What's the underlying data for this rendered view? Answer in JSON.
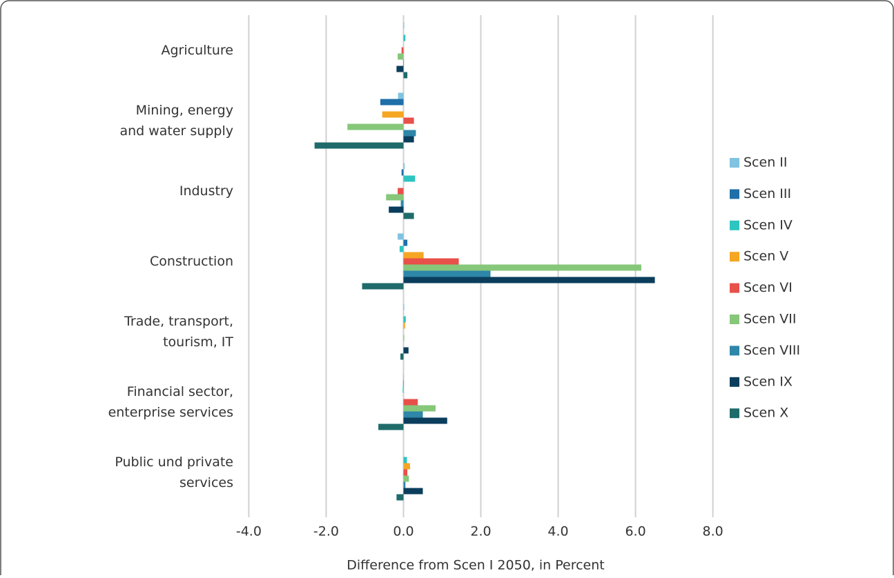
{
  "chart_data": {
    "type": "hbar",
    "x_label": "Difference from Scen I 2050, in Percent",
    "categories": [
      "Agriculture",
      "Mining, energy\nand water supply",
      "Industry",
      "Construction",
      "Trade, transport,\ntourism, IT",
      "Financial sector,\nenterprise services",
      "Public und private\nservices"
    ],
    "series": [
      {
        "name": "Scen II",
        "color": "#7fc3e0",
        "values": [
          0.02,
          -0.14,
          0.03,
          -0.15,
          0.02,
          -0.01,
          0
        ]
      },
      {
        "name": "Scen III",
        "color": "#1f6fa8",
        "values": [
          0,
          -0.6,
          -0.05,
          0.1,
          0,
          -0.01,
          0
        ]
      },
      {
        "name": "Scen IV",
        "color": "#2ec4c0",
        "values": [
          0.05,
          0,
          0.3,
          -0.1,
          0.06,
          -0.02,
          0.09
        ]
      },
      {
        "name": "Scen V",
        "color": "#f5a623",
        "values": [
          0,
          -0.55,
          0,
          0.52,
          0.04,
          0,
          0.17
        ]
      },
      {
        "name": "Scen VI",
        "color": "#e8504a",
        "values": [
          -0.05,
          0.27,
          -0.15,
          1.43,
          0,
          0.37,
          0.1
        ]
      },
      {
        "name": "Scen VII",
        "color": "#86c77a",
        "values": [
          -0.15,
          -1.45,
          -0.45,
          6.15,
          0.02,
          0.83,
          0.14
        ]
      },
      {
        "name": "Scen VIII",
        "color": "#2e86a8",
        "values": [
          0.01,
          0.32,
          -0.07,
          2.25,
          0,
          0.5,
          0.05
        ]
      },
      {
        "name": "Scen IX",
        "color": "#0b3d5c",
        "values": [
          -0.18,
          0.27,
          -0.38,
          6.5,
          0.13,
          1.13,
          0.5
        ]
      },
      {
        "name": "Scen X",
        "color": "#1f6b6b",
        "values": [
          0.1,
          -2.3,
          0.27,
          -1.07,
          -0.08,
          -0.65,
          -0.18
        ]
      }
    ],
    "xlim": [
      -4.4,
      8.4
    ],
    "xticks": [
      {
        "value": -4,
        "label": "-4.0"
      },
      {
        "value": -2,
        "label": "-2.0"
      },
      {
        "value": 0,
        "label": "0.0"
      },
      {
        "value": 2,
        "label": "2.0"
      },
      {
        "value": 4,
        "label": "4.0"
      },
      {
        "value": 6,
        "label": "6.0"
      },
      {
        "value": 8,
        "label": "8.0"
      }
    ],
    "grid": true
  }
}
